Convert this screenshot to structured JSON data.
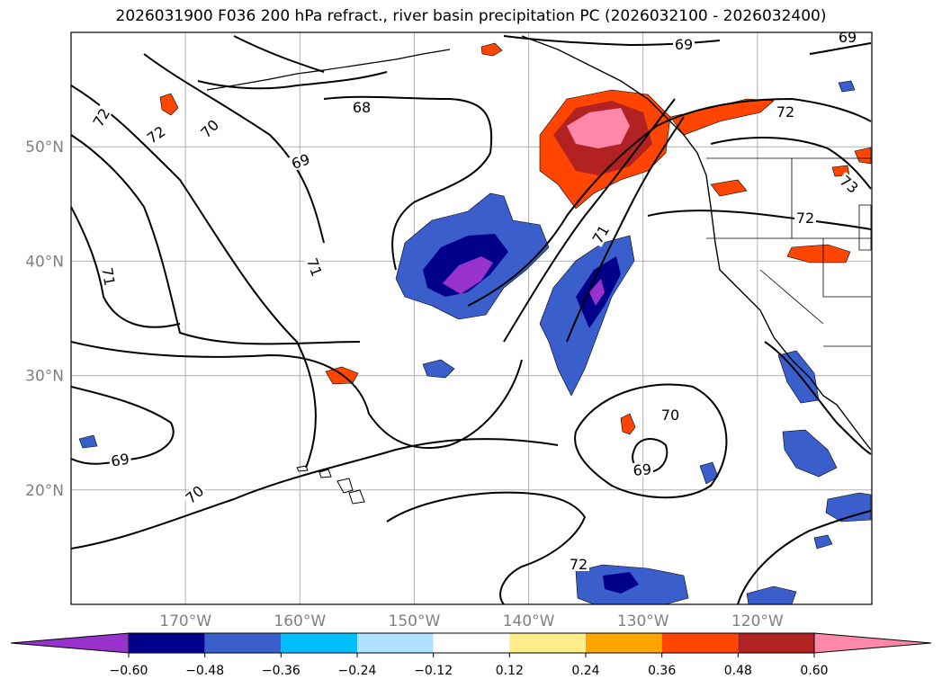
{
  "title": "2026031900 F036 200 hPa refract., river basin precipitation PC (2026032100 - 2026032400)",
  "map": {
    "extent": {
      "lon_min": -180,
      "lon_max": -110,
      "lat_min": 10,
      "lat_max": 60
    },
    "lat_ticks": [
      {
        "lat": 50,
        "label": "50°N"
      },
      {
        "lat": 40,
        "label": "40°N"
      },
      {
        "lat": 30,
        "label": "30°N"
      },
      {
        "lat": 20,
        "label": "20°N"
      }
    ],
    "lon_ticks": [
      {
        "lon": -170,
        "label": "170°W"
      },
      {
        "lon": -160,
        "label": "160°W"
      },
      {
        "lon": -150,
        "label": "150°W"
      },
      {
        "lon": -140,
        "label": "140°W"
      },
      {
        "lon": -130,
        "label": "130°W"
      },
      {
        "lon": -120,
        "label": "120°W"
      }
    ],
    "grid": true,
    "contour_labels": [
      "72",
      "72",
      "70",
      "68",
      "69",
      "69",
      "69",
      "72",
      "73",
      "72",
      "71",
      "71",
      "71",
      "69",
      "70",
      "70",
      "69",
      "72"
    ]
  },
  "colorbar": {
    "ticks": [
      "−0.60",
      "−0.48",
      "−0.36",
      "−0.24",
      "−0.12",
      "0.12",
      "0.24",
      "0.36",
      "0.48",
      "0.60"
    ],
    "colors": [
      "#9932cc",
      "#00008b",
      "#3a5fcd",
      "#00bfff",
      "#b0e2ff",
      "#ffffff",
      "#ffec8b",
      "#ffa500",
      "#ff4500",
      "#b22222",
      "#ff88aa"
    ],
    "extend": "both"
  }
}
